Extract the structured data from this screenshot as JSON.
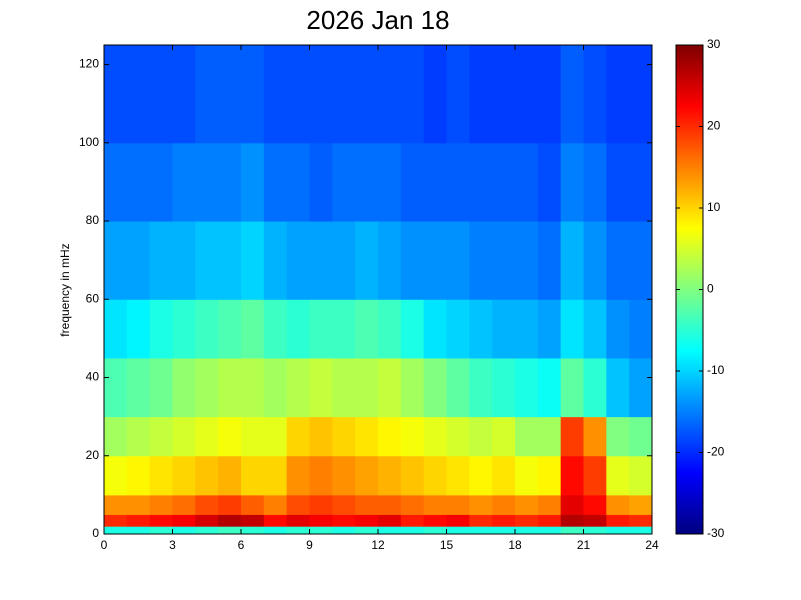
{
  "chart_data": {
    "type": "heatmap",
    "title": "2026 Jan 18",
    "ylabel": "frequency in mHz",
    "colormap": "jet",
    "x": [
      0,
      1,
      2,
      3,
      4,
      5,
      6,
      7,
      8,
      9,
      10,
      11,
      12,
      13,
      14,
      15,
      16,
      17,
      18,
      19,
      20,
      21,
      22,
      23,
      24
    ],
    "y": [
      0,
      2,
      5,
      10,
      20,
      30,
      45,
      60,
      80,
      100,
      125
    ],
    "z": [
      [
        -6,
        -6,
        -5,
        -6,
        -5,
        -4,
        -5,
        -6,
        -5,
        -5,
        -6,
        -5,
        -6,
        -6,
        -5,
        -6,
        -6,
        -6,
        -6,
        -6,
        -4,
        -5,
        -6,
        -6
      ],
      [
        20,
        21,
        22,
        23,
        25,
        27,
        26,
        22,
        24,
        23,
        22,
        23,
        24,
        21,
        22,
        23,
        20,
        21,
        20,
        21,
        27,
        26,
        21,
        20
      ],
      [
        14,
        14,
        15,
        16,
        18,
        19,
        17,
        15,
        18,
        19,
        18,
        17,
        17,
        16,
        15,
        15,
        14,
        15,
        14,
        15,
        24,
        22,
        14,
        13
      ],
      [
        7,
        8,
        9,
        10,
        11,
        12,
        10,
        10,
        14,
        15,
        14,
        13,
        12,
        11,
        10,
        9,
        8,
        9,
        7,
        8,
        22,
        19,
        6,
        5
      ],
      [
        2,
        3,
        4,
        5,
        6,
        7,
        6,
        6,
        10,
        11,
        10,
        9,
        8,
        7,
        6,
        5,
        4,
        5,
        2,
        2,
        19,
        14,
        0,
        -1
      ],
      [
        -3,
        -2,
        -1,
        1,
        2,
        3,
        3,
        2,
        3,
        4,
        3,
        3,
        4,
        2,
        0,
        -2,
        -4,
        -5,
        -6,
        -7,
        -2,
        -5,
        -11,
        -13
      ],
      [
        -9,
        -8,
        -6,
        -5,
        -4,
        -3,
        -2,
        -4,
        -5,
        -4,
        -4,
        -3,
        -4,
        -6,
        -9,
        -10,
        -11,
        -12,
        -12,
        -13,
        -9,
        -11,
        -14,
        -15
      ],
      [
        -13,
        -13,
        -12,
        -12,
        -11,
        -11,
        -10,
        -12,
        -13,
        -13,
        -13,
        -12,
        -13,
        -14,
        -14,
        -14,
        -15,
        -15,
        -15,
        -16,
        -12,
        -14,
        -16,
        -16
      ],
      [
        -16,
        -16,
        -16,
        -15,
        -15,
        -15,
        -14,
        -16,
        -16,
        -17,
        -16,
        -16,
        -16,
        -17,
        -17,
        -17,
        -17,
        -17,
        -17,
        -18,
        -15,
        -16,
        -18,
        -18
      ],
      [
        -18,
        -18,
        -18,
        -18,
        -17,
        -17,
        -17,
        -18,
        -18,
        -18,
        -18,
        -18,
        -18,
        -18,
        -19,
        -18,
        -19,
        -19,
        -19,
        -19,
        -17,
        -18,
        -19,
        -19
      ]
    ],
    "xlim": [
      0,
      24
    ],
    "xticks": [
      0,
      3,
      6,
      9,
      12,
      15,
      18,
      21,
      24
    ],
    "ylim": [
      0,
      125
    ],
    "yticks": [
      0,
      20,
      40,
      60,
      80,
      100,
      120
    ],
    "clim": [
      -30,
      30
    ],
    "cticks": [
      -30,
      -20,
      -10,
      0,
      10,
      20,
      30
    ]
  }
}
